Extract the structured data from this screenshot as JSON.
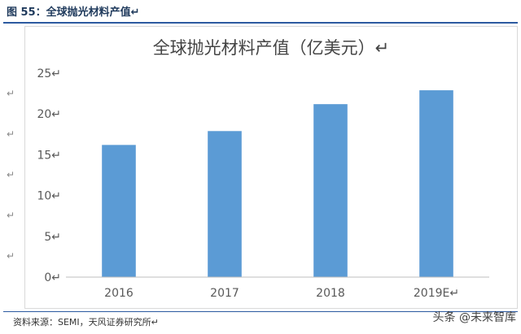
{
  "figure": {
    "label": "图 55：全球抛光材料产值↵",
    "source": "资料来源：SEMI，天风证券研究所↵",
    "watermark": "头条 @未来智库"
  },
  "left_marks": [
    "↵",
    "↵",
    "↵",
    "↵",
    "↵"
  ],
  "chart_data": {
    "type": "bar",
    "title": "全球抛光材料产值（亿美元）↵",
    "categories": [
      "2016",
      "2017",
      "2018",
      "2019E↵"
    ],
    "values": [
      16.2,
      17.9,
      21.2,
      22.9
    ],
    "ylim": [
      0,
      25
    ],
    "yticks": [
      "0↵",
      "5↵",
      "10↵",
      "15↵",
      "20↵",
      "25↵"
    ],
    "grid": false,
    "legend": "none",
    "bar_color": "#5b9bd5"
  }
}
